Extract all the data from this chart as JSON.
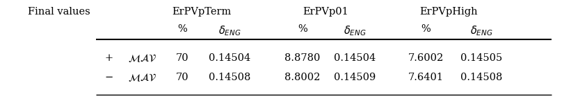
{
  "title_row": "Final values",
  "group_headers": [
    "ErPVpTerm",
    "ErPVp01",
    "ErPVpHigh"
  ],
  "row1_sign": "+",
  "row2_sign": "−",
  "row1_data": [
    "70",
    "0.14504",
    "8.8780",
    "0.14504",
    "7.6002",
    "0.14505"
  ],
  "row2_data": [
    "70",
    "0.14508",
    "8.8002",
    "0.14509",
    "7.6401",
    "0.14508"
  ],
  "bg_color": "#ffffff",
  "text_color": "#000000",
  "line_color": "#000000",
  "figsize": [
    8.21,
    1.62
  ],
  "dpi": 100,
  "fs_main": 10.5,
  "fs_sub": 10.5
}
